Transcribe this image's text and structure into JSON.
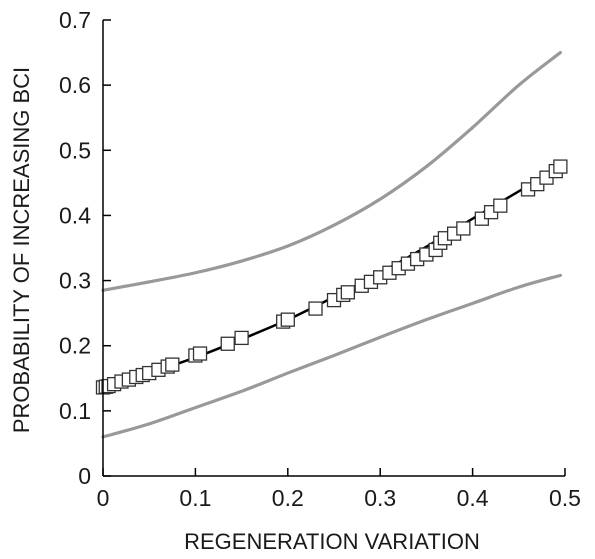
{
  "chart_data": {
    "type": "line",
    "title": "",
    "xlabel": "REGENERATION VARIATION",
    "ylabel": "PROBABILITY OF INCREASING BCI",
    "xlim": [
      0,
      0.5
    ],
    "ylim": [
      0,
      0.7
    ],
    "x_ticks": [
      0,
      0.1,
      0.2,
      0.3,
      0.4,
      0.5
    ],
    "y_ticks": [
      0,
      0.1,
      0.2,
      0.3,
      0.4,
      0.5,
      0.6,
      0.7
    ],
    "x_tick_labels": [
      "0",
      "0.1",
      "0.2",
      "0.3",
      "0.4",
      "0.5"
    ],
    "y_tick_labels": [
      "0",
      "0.1",
      "0.2",
      "0.3",
      "0.4",
      "0.5",
      "0.6",
      "0.7"
    ],
    "grid": false,
    "legend": "none",
    "colors": {
      "fit_line": "#000000",
      "confidence_band": "#999999",
      "marker_fill": "#ffffff",
      "marker_stroke": "#333333",
      "axis": "#000000"
    },
    "series": [
      {
        "role": "upper-confidence-bound",
        "style": "line",
        "x": [
          0,
          0.05,
          0.1,
          0.15,
          0.2,
          0.25,
          0.3,
          0.35,
          0.4,
          0.45,
          0.495
        ],
        "y": [
          0.285,
          0.298,
          0.312,
          0.33,
          0.353,
          0.385,
          0.425,
          0.475,
          0.535,
          0.6,
          0.65
        ]
      },
      {
        "role": "fitted-trend",
        "style": "line",
        "x": [
          0,
          0.05,
          0.1,
          0.15,
          0.2,
          0.25,
          0.3,
          0.35,
          0.4,
          0.45,
          0.495
        ],
        "y": [
          0.135,
          0.158,
          0.182,
          0.21,
          0.24,
          0.275,
          0.312,
          0.352,
          0.395,
          0.437,
          0.475
        ]
      },
      {
        "role": "lower-confidence-bound",
        "style": "line",
        "x": [
          0,
          0.05,
          0.1,
          0.15,
          0.2,
          0.25,
          0.3,
          0.35,
          0.4,
          0.45,
          0.495
        ],
        "y": [
          0.06,
          0.08,
          0.105,
          0.13,
          0.158,
          0.185,
          0.213,
          0.24,
          0.265,
          0.29,
          0.308
        ]
      },
      {
        "role": "data-points",
        "style": "square-markers",
        "x": [
          0.0,
          0.003,
          0.006,
          0.012,
          0.02,
          0.028,
          0.036,
          0.043,
          0.05,
          0.06,
          0.07,
          0.075,
          0.1,
          0.105,
          0.135,
          0.15,
          0.195,
          0.2,
          0.23,
          0.25,
          0.26,
          0.265,
          0.28,
          0.29,
          0.3,
          0.31,
          0.32,
          0.33,
          0.34,
          0.35,
          0.36,
          0.365,
          0.37,
          0.38,
          0.39,
          0.41,
          0.42,
          0.43,
          0.46,
          0.47,
          0.48,
          0.49,
          0.495
        ],
        "y": [
          0.136,
          0.137,
          0.138,
          0.141,
          0.145,
          0.148,
          0.152,
          0.155,
          0.158,
          0.163,
          0.168,
          0.171,
          0.185,
          0.188,
          0.203,
          0.212,
          0.237,
          0.24,
          0.257,
          0.27,
          0.278,
          0.282,
          0.292,
          0.298,
          0.305,
          0.312,
          0.319,
          0.326,
          0.333,
          0.34,
          0.347,
          0.358,
          0.365,
          0.372,
          0.38,
          0.395,
          0.405,
          0.415,
          0.44,
          0.448,
          0.458,
          0.468,
          0.475
        ]
      }
    ]
  }
}
